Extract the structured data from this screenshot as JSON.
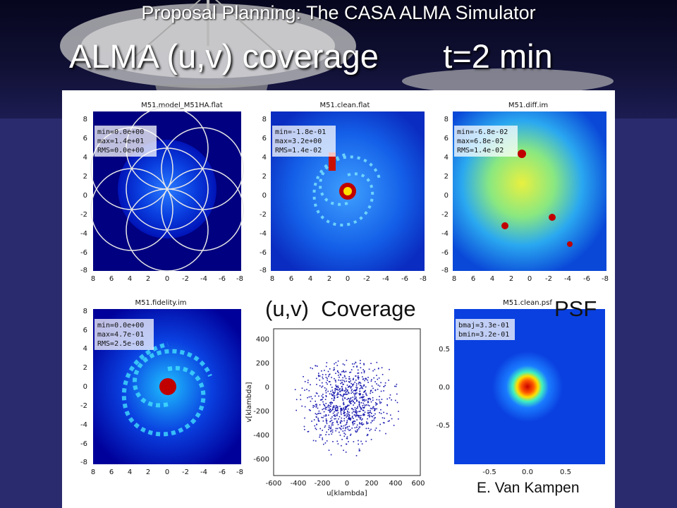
{
  "slide": {
    "supertitle": "Proposal Planning: The CASA ALMA Simulator",
    "title": "ALMA (u,v) coverage       t=2 min",
    "overlay_left": "(u,v)  Coverage",
    "overlay_right": "PSF",
    "credit": "E. Van Kampen"
  },
  "panels": {
    "model": {
      "title": "M51.model_M51HA.flat",
      "stats": [
        "min=0.0e+00",
        "max=1.4e+01",
        "RMS=0.0e+00"
      ]
    },
    "clean": {
      "title": "M51.clean.flat",
      "stats": [
        "min=-1.8e-01",
        "max=3.2e+00",
        "RMS=1.4e-02"
      ]
    },
    "diff": {
      "title": "M51.diff.im",
      "stats": [
        "min=-6.8e-02",
        "max=6.8e-02",
        "RMS=1.4e-02"
      ]
    },
    "fidelity": {
      "title": "M51.fidelity.im",
      "stats": [
        "min=0.0e+00",
        "max=4.7e-01",
        "RMS=2.5e-08"
      ]
    },
    "uv": {
      "xlabel": "u[klambda]",
      "ylabel": "v[klambda]",
      "xticks": [
        "-600",
        "-400",
        "-200",
        "0",
        "200",
        "400",
        "600"
      ],
      "yticks": [
        "400",
        "200",
        "0",
        "-200",
        "-400",
        "-600"
      ]
    },
    "psf": {
      "title": "M51.clean.psf",
      "stats": [
        "bmaj=3.3e-01",
        "bmin=3.2e-01"
      ],
      "xticks": [
        "-0.5",
        "0.0",
        "0.5"
      ],
      "yticks": [
        "0.5",
        "0.0",
        "-0.5"
      ]
    },
    "image_axes": {
      "xticks": [
        "8",
        "6",
        "4",
        "2",
        "0",
        "-2",
        "-4",
        "-6",
        "-8"
      ],
      "yticks": [
        "8",
        "6",
        "4",
        "2",
        "0",
        "-2",
        "-4",
        "-6",
        "-8"
      ]
    }
  },
  "colors": {
    "banner_bg": "#06061e",
    "slide_bg": "#2a2a6e",
    "map_bg": "#0a2fd0",
    "uv_dots": "#1a1ab0",
    "psf_core": "#c80000"
  }
}
